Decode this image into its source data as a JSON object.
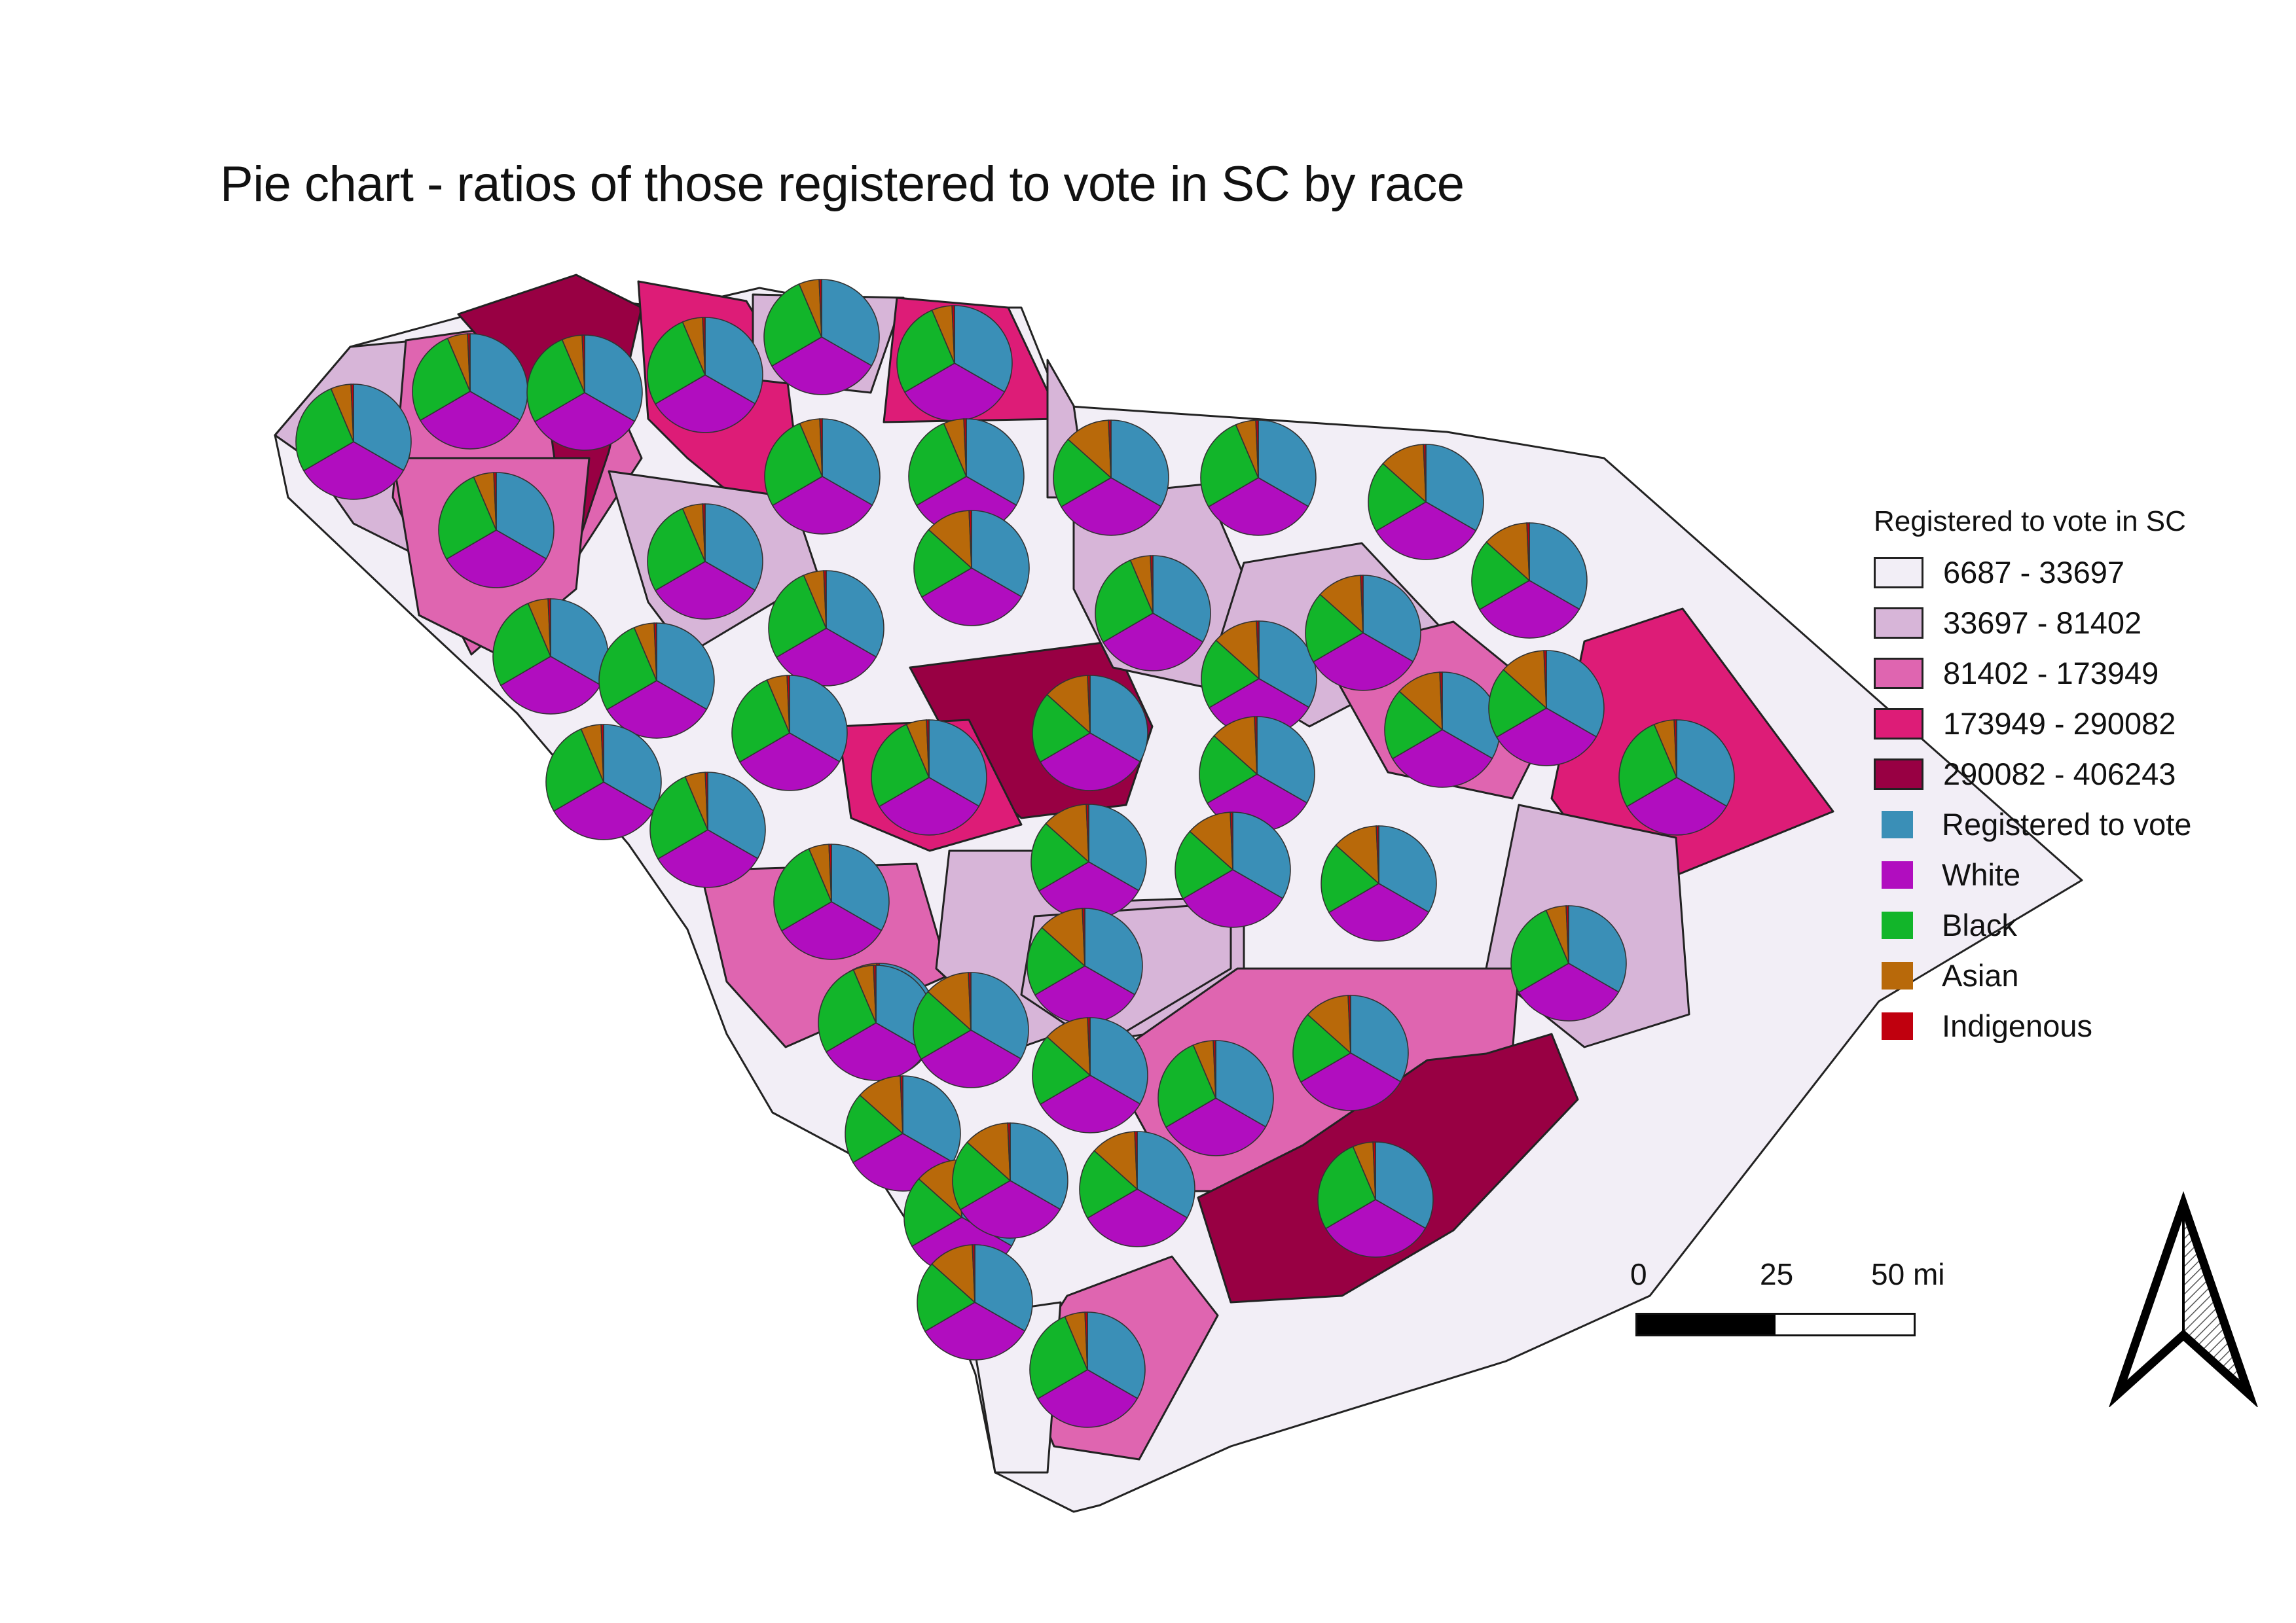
{
  "title": "Pie chart - ratios of those registered to vote in SC by race",
  "legend": {
    "title": "Registered to vote in SC",
    "classes": [
      {
        "label": "6687 - 33697",
        "color": "#f2eef6"
      },
      {
        "label": "33697 - 81402",
        "color": "#d7b5d8"
      },
      {
        "label": "81402 - 173949",
        "color": "#df65b0"
      },
      {
        "label": "173949 - 290082",
        "color": "#dd1c77"
      },
      {
        "label": "290082 - 406243",
        "color": "#980043"
      }
    ],
    "pie_categories": [
      {
        "label": "Registered to vote",
        "color": "#3a8fb7"
      },
      {
        "label": "White",
        "color": "#b10dbf"
      },
      {
        "label": "Black",
        "color": "#12b52a"
      },
      {
        "label": "Asian",
        "color": "#b8690a"
      },
      {
        "label": "Indigenous",
        "color": "#c0000e"
      }
    ]
  },
  "scale_bar": {
    "labels": [
      "0",
      "25",
      "50 mi"
    ]
  },
  "north_arrow": "north-arrow-icon",
  "pie_ratios": {
    "default": [
      0.333,
      0.333,
      0.27,
      0.057,
      0.007
    ],
    "high_asian": [
      0.333,
      0.333,
      0.2,
      0.127,
      0.007
    ]
  }
}
